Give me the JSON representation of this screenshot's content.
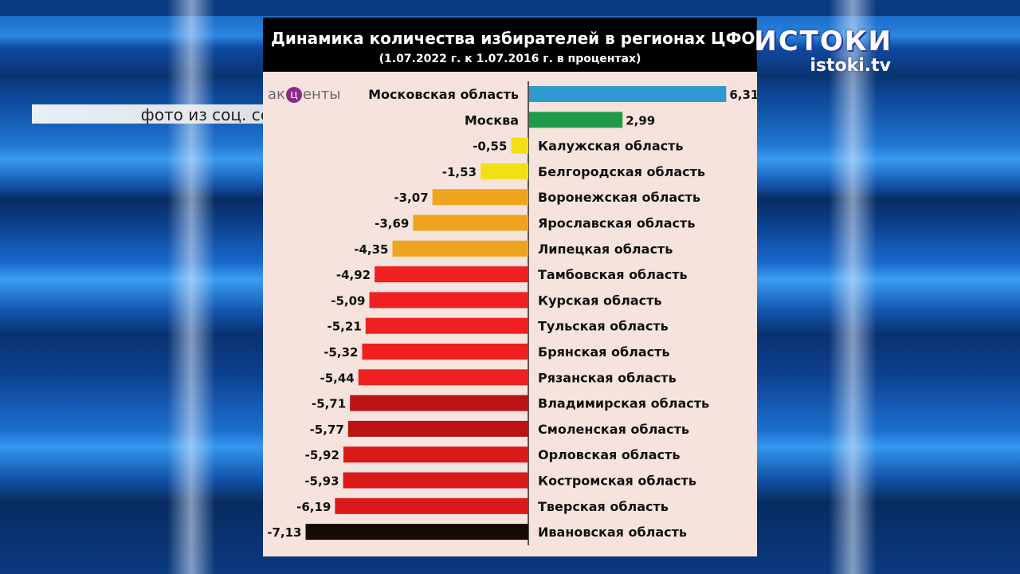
{
  "overlay": {
    "caption": "фото из соц. сетей",
    "channel_name": "ИСТОКИ",
    "channel_url": "istoki.tv",
    "accent_logo_left": "ак",
    "accent_logo_mid": "ц",
    "accent_logo_right": "енты"
  },
  "chart_data": {
    "type": "bar",
    "orientation": "horizontal",
    "title": "Динамика количества избирателей в регионах ЦФО",
    "subtitle": "(1.07.2022 г. к 1.07.2016 г. в процентах)",
    "categories": [
      "Московская область",
      "Москва",
      "Калужская область",
      "Белгородская область",
      "Воронежская область",
      "Ярославская область",
      "Липецкая область",
      "Тамбовская область",
      "Курская область",
      "Тульская область",
      "Брянская область",
      "Рязанская область",
      "Владимирская область",
      "Смоленская область",
      "Орловская область",
      "Костромская область",
      "Тверская область",
      "Ивановская область"
    ],
    "values": [
      6.31,
      2.99,
      -0.55,
      -1.53,
      -3.07,
      -3.69,
      -4.35,
      -4.92,
      -5.09,
      -5.21,
      -5.32,
      -5.44,
      -5.71,
      -5.77,
      -5.92,
      -5.93,
      -6.19,
      -7.13
    ],
    "value_labels": [
      "6,31",
      "2,99",
      "-0,55",
      "-1,53",
      "-3,07",
      "-3,69",
      "-4,35",
      "-4,92",
      "-5,09",
      "-5,21",
      "-5,32",
      "-5,44",
      "-5,71",
      "-5,77",
      "-5,92",
      "-5,93",
      "-6,19",
      "-7,13"
    ],
    "colors": [
      "#2e9ad0",
      "#1f9a4a",
      "#f2df16",
      "#f2df16",
      "#eea51e",
      "#eea51e",
      "#eea51e",
      "#ee2020",
      "#ee2020",
      "#ee2020",
      "#ee2020",
      "#ee2020",
      "#b81414",
      "#b81414",
      "#d81a1a",
      "#d81a1a",
      "#d81a1a",
      "#140a08"
    ],
    "xlim": [
      -7.13,
      6.31
    ],
    "grid": false,
    "legend": "none"
  }
}
